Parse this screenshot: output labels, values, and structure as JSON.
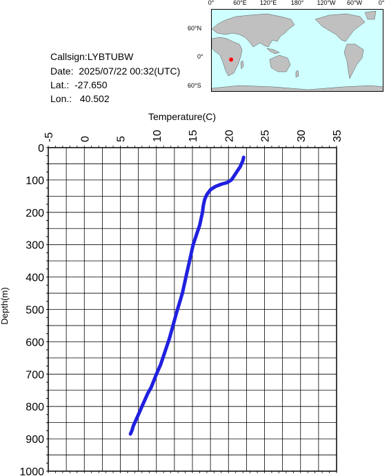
{
  "info": {
    "callsign": "Callsign:LYBTUBW",
    "date": "Date:  2025/07/22 00:32(UTC)",
    "lat": "Lat.:  -27.650",
    "lon": "Lon.:   40.502"
  },
  "map": {
    "lon_labels": [
      "0°",
      "60°E",
      "120°E",
      "180°",
      "120°W",
      "60°W",
      "0°"
    ],
    "lat_labels": [
      "60°N",
      "0°",
      "60°S"
    ],
    "station": {
      "lat": -27.65,
      "lon": 40.502
    },
    "ocean_color": "#cfffff",
    "land_color": "#c0c0c0",
    "marker_color": "#ff0000"
  },
  "chart_data": {
    "type": "line",
    "xlabel": "Temperature(C)",
    "ylabel": "Depth(m)",
    "xlim": [
      -5,
      35
    ],
    "ylim": [
      1000,
      0
    ],
    "x_ticks": [
      "-5",
      "0",
      "5",
      "10",
      "15",
      "20",
      "25",
      "30",
      "35"
    ],
    "y_ticks": [
      "0",
      "100",
      "200",
      "300",
      "400",
      "500",
      "600",
      "700",
      "800",
      "900",
      "1000"
    ],
    "grid": true,
    "line_color": "#2020e0",
    "series": [
      {
        "x": [
          22.1,
          22.0,
          21.8,
          21.6,
          21.3,
          21.0,
          20.7,
          20.4,
          19.8,
          19.0,
          18.2,
          17.5,
          17.0,
          16.7,
          16.5,
          16.4,
          16.2,
          16.0,
          15.7,
          15.4,
          15.1,
          14.8,
          14.5,
          14.2,
          13.9,
          13.6,
          13.2,
          12.8,
          12.3,
          11.8,
          11.2,
          10.6,
          10.0,
          9.3,
          8.8,
          8.4,
          8.0,
          7.6,
          7.2,
          6.8,
          6.6,
          6.4
        ],
        "y": [
          30,
          40,
          50,
          60,
          70,
          80,
          90,
          100,
          108,
          113,
          120,
          130,
          145,
          160,
          180,
          200,
          220,
          240,
          260,
          280,
          300,
          330,
          360,
          390,
          420,
          450,
          480,
          510,
          550,
          590,
          630,
          670,
          700,
          740,
          760,
          780,
          800,
          820,
          840,
          860,
          875,
          885
        ]
      }
    ]
  }
}
